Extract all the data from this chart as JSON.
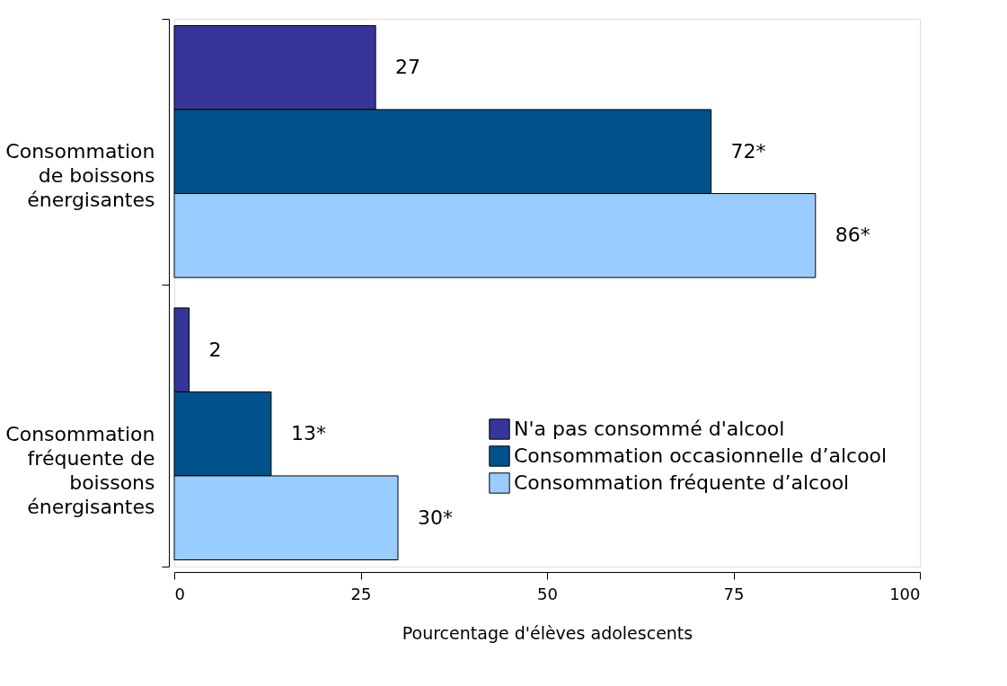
{
  "chart_data": {
    "type": "bar",
    "orientation": "horizontal",
    "xlabel": "Pourcentage d'élèves adolescents",
    "categories": [
      "Consommation de boissons énergisantes",
      "Consommation fréquente de boissons énergisantes"
    ],
    "series": [
      {
        "name": "N'a pas consommé d'alcool",
        "color": "#35359a",
        "values": [
          27,
          2
        ],
        "value_labels": [
          "27",
          "2"
        ]
      },
      {
        "name": "Consommation occasionnelle d’alcool",
        "color": "#00528c",
        "values": [
          72,
          13
        ],
        "value_labels": [
          "72*",
          "13*"
        ]
      },
      {
        "name": "Consommation fréquente d’alcool",
        "color": "#99ccff",
        "values": [
          86,
          30
        ],
        "value_labels": [
          "86*",
          "30*"
        ]
      }
    ],
    "xlim": [
      0,
      100
    ],
    "xticks": [
      0,
      25,
      50,
      75,
      100
    ],
    "grid": false,
    "legend": "right"
  }
}
